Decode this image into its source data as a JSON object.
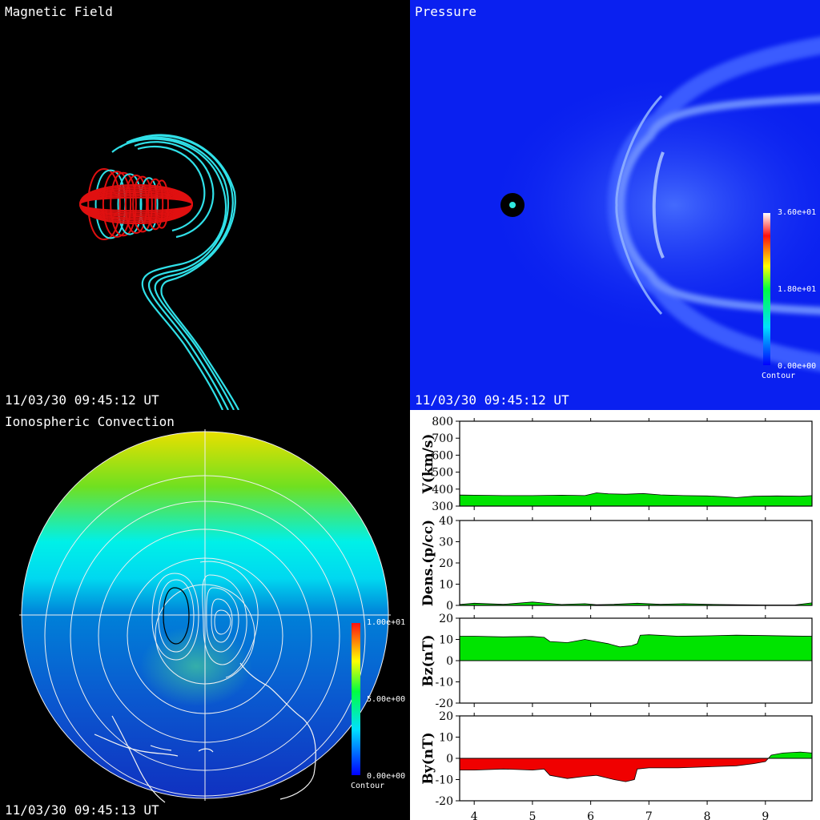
{
  "panels": {
    "magnetic": {
      "title": "Magnetic Field",
      "timestamp": "11/03/30 09:45:12 UT"
    },
    "pressure": {
      "title": "Pressure",
      "timestamp": "11/03/30 09:45:12 UT",
      "colorbar": {
        "max": "3.60e+01",
        "mid": "1.80e+01",
        "min": "0.00e+00",
        "label": "Contour"
      }
    },
    "ionosphere": {
      "title": "Ionospheric Convection",
      "timestamp": "11/03/30 09:45:13 UT",
      "colorbar": {
        "max": "1.00e+01",
        "mid": "5.00e+00",
        "min": "0.00e+00",
        "label": "Contour"
      }
    }
  },
  "colors": {
    "field_closed": "#e01010",
    "field_open": "#30e0e8",
    "fill_positive": "#00e400",
    "fill_negative": "#f00000",
    "pressure_bg": "#0a20f0"
  },
  "chart_data": [
    {
      "type": "area",
      "ylabel": "V(km/s)",
      "ylim": [
        300,
        800
      ],
      "yticks": [
        300,
        400,
        500,
        600,
        700,
        800
      ],
      "xlim": [
        3.75,
        9.8
      ],
      "xticks": [
        4,
        5,
        6,
        7,
        8,
        9
      ],
      "x": [
        3.75,
        4.0,
        4.5,
        5.0,
        5.5,
        5.9,
        6.1,
        6.3,
        6.6,
        6.9,
        7.2,
        7.6,
        8.0,
        8.3,
        8.5,
        8.8,
        9.2,
        9.6,
        9.8
      ],
      "y": [
        365,
        364,
        362,
        362,
        364,
        362,
        378,
        372,
        370,
        374,
        366,
        362,
        360,
        355,
        350,
        358,
        360,
        358,
        362
      ]
    },
    {
      "type": "area",
      "ylabel": "Dens.(p/cc)",
      "ylim": [
        0,
        40
      ],
      "yticks": [
        0,
        10,
        20,
        30,
        40
      ],
      "xlim": [
        3.75,
        9.8
      ],
      "xticks": [
        4,
        5,
        6,
        7,
        8,
        9
      ],
      "x": [
        3.75,
        4.0,
        4.5,
        5.0,
        5.5,
        5.9,
        6.1,
        6.4,
        6.8,
        7.2,
        7.6,
        8.0,
        8.5,
        9.0,
        9.5,
        9.8
      ],
      "y": [
        0.4,
        1.0,
        0.5,
        1.6,
        0.4,
        0.8,
        0.3,
        0.5,
        1.0,
        0.5,
        0.8,
        0.5,
        0.3,
        0.2,
        0.2,
        1.2
      ]
    },
    {
      "type": "area",
      "ylabel": "Bz(nT)",
      "ylim": [
        -20,
        20
      ],
      "yticks": [
        -20,
        -10,
        0,
        10,
        20
      ],
      "xlim": [
        3.75,
        9.8
      ],
      "xticks": [
        4,
        5,
        6,
        7,
        8,
        9
      ],
      "x": [
        3.75,
        4.0,
        4.5,
        5.0,
        5.2,
        5.3,
        5.6,
        5.9,
        6.1,
        6.3,
        6.5,
        6.7,
        6.8,
        6.85,
        7.0,
        7.5,
        8.0,
        8.5,
        9.0,
        9.5,
        9.8
      ],
      "y": [
        11.5,
        11.5,
        11.2,
        11.4,
        11.0,
        9.0,
        8.5,
        10.0,
        9.0,
        8.0,
        6.5,
        7.0,
        8.0,
        12.0,
        12.2,
        11.5,
        11.7,
        12.0,
        11.8,
        11.6,
        11.5
      ]
    },
    {
      "type": "area",
      "ylabel": "By(nT)",
      "ylim": [
        -20,
        20
      ],
      "yticks": [
        -20,
        -10,
        0,
        10,
        20
      ],
      "xlim": [
        3.75,
        9.8
      ],
      "xticks": [
        4,
        5,
        6,
        7,
        8,
        9
      ],
      "x": [
        3.75,
        4.0,
        4.5,
        5.0,
        5.2,
        5.3,
        5.6,
        5.9,
        6.1,
        6.4,
        6.6,
        6.75,
        6.8,
        7.0,
        7.5,
        8.0,
        8.5,
        8.8,
        9.0,
        9.1,
        9.3,
        9.6,
        9.8
      ],
      "y": [
        -5.5,
        -5.5,
        -5,
        -5.5,
        -5,
        -8,
        -9.5,
        -8.5,
        -8,
        -10,
        -11,
        -10,
        -5,
        -4.5,
        -4.5,
        -4,
        -3.5,
        -2.5,
        -1.5,
        1.5,
        2.5,
        3,
        2.5
      ]
    }
  ]
}
